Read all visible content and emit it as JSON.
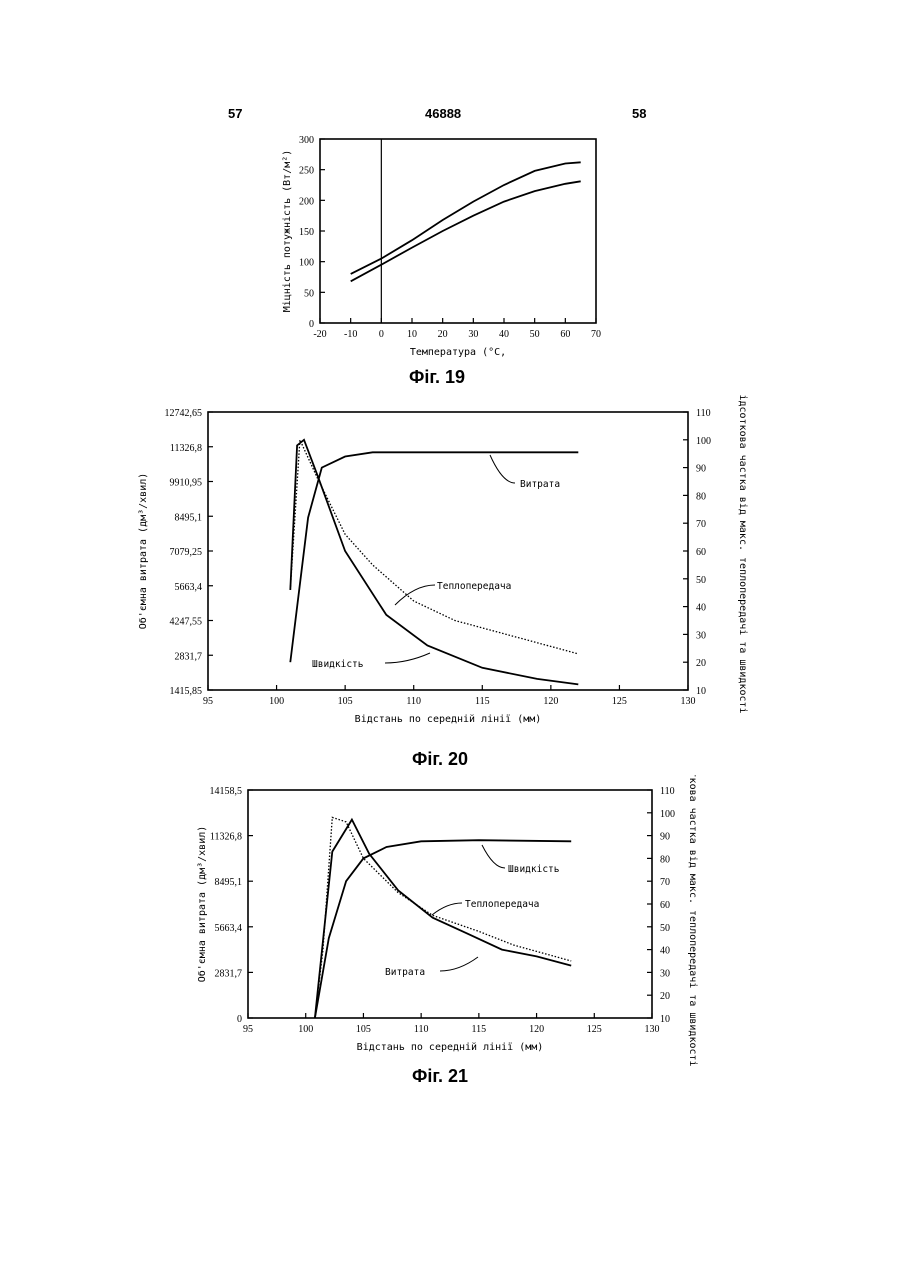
{
  "page": {
    "left_number": "57",
    "doc_number": "46888",
    "right_number": "58"
  },
  "chart_data": [
    {
      "type": "line",
      "caption": "Фіг. 19",
      "xlabel": "Температура (°C,",
      "ylabel": "Міцність потужність (Вт/м²)",
      "xlim": [
        -20,
        70
      ],
      "ylim": [
        0,
        300
      ],
      "xticks": [
        "-20",
        "-10",
        "0",
        "10",
        "20",
        "30",
        "40",
        "50",
        "60",
        "70"
      ],
      "yticks": [
        "0",
        "50",
        "100",
        "150",
        "200",
        "250",
        "300"
      ],
      "vline_x": 0,
      "series": [
        {
          "values": [
            [
              -10,
              80
            ],
            [
              0,
              105
            ],
            [
              10,
              135
            ],
            [
              20,
              168
            ],
            [
              30,
              198
            ],
            [
              40,
              225
            ],
            [
              50,
              248
            ],
            [
              60,
              260
            ],
            [
              65,
              262
            ]
          ]
        },
        {
          "values": [
            [
              -10,
              68
            ],
            [
              0,
              95
            ],
            [
              10,
              123
            ],
            [
              20,
              150
            ],
            [
              30,
              175
            ],
            [
              40,
              198
            ],
            [
              50,
              215
            ],
            [
              60,
              227
            ],
            [
              65,
              231
            ]
          ]
        }
      ]
    },
    {
      "type": "line",
      "caption": "Фіг. 20",
      "xlabel": "Відстань по середній лінії (мм)",
      "ylabel": "Об'ємна витрата (дм³/хвил)",
      "y2label": "Відсоткова частка від макс. теплопередачі та швидкості",
      "xlim": [
        95,
        130
      ],
      "xticks": [
        "95",
        "100",
        "105",
        "110",
        "115",
        "120",
        "125",
        "130"
      ],
      "yticks": [
        "1415,85",
        "2831,7",
        "4247,55",
        "5663,4",
        "7079,25",
        "8495,1",
        "9910,95",
        "11326,8",
        "12742,65"
      ],
      "y2lim": [
        10,
        110
      ],
      "y2ticks": [
        "10",
        "20",
        "30",
        "40",
        "50",
        "60",
        "70",
        "80",
        "90",
        "100",
        "110"
      ],
      "annotations": {
        "a": "Витрата",
        "b": "Теплопередача",
        "c": "Швидкість"
      },
      "series": [
        {
          "name": "Витрата",
          "style": "solid",
          "values": [
            [
              101,
              20
            ],
            [
              102.3,
              72
            ],
            [
              103.3,
              90
            ],
            [
              105,
              94
            ],
            [
              107,
              95.5
            ],
            [
              110,
              95.5
            ],
            [
              115,
              95.5
            ],
            [
              122,
              95.5
            ]
          ]
        },
        {
          "name": "Теплопередача",
          "style": "dotted",
          "values": [
            [
              101,
              46
            ],
            [
              101.7,
              100
            ],
            [
              103,
              86
            ],
            [
              105,
              66
            ],
            [
              107,
              55
            ],
            [
              110,
              42
            ],
            [
              113,
              35
            ],
            [
              116,
              31
            ],
            [
              119,
              27
            ],
            [
              122,
              23
            ]
          ]
        },
        {
          "name": "Швидкість",
          "style": "solid",
          "values": [
            [
              101,
              46
            ],
            [
              101.5,
              98
            ],
            [
              102,
              100
            ],
            [
              103,
              87
            ],
            [
              105,
              60
            ],
            [
              108,
              37
            ],
            [
              111,
              26
            ],
            [
              115,
              18
            ],
            [
              119,
              14
            ],
            [
              122,
              12
            ]
          ]
        }
      ]
    },
    {
      "type": "line",
      "caption": "Фіг. 21",
      "xlabel": "Відстань по середній лінії (мм)",
      "ylabel": "Об'ємна витрата (дм³/хвил)",
      "y2label": "Відсоткова частка від макс. теплопередачі та швидкості",
      "xlim": [
        95,
        130
      ],
      "xticks": [
        "95",
        "100",
        "105",
        "110",
        "115",
        "120",
        "125",
        "130"
      ],
      "yticks": [
        "0",
        "2831,7",
        "5663,4",
        "8495,1",
        "11326,8",
        "14158,5"
      ],
      "y2lim": [
        10,
        110
      ],
      "y2ticks": [
        "10",
        "20",
        "30",
        "40",
        "50",
        "60",
        "70",
        "80",
        "90",
        "100",
        "110"
      ],
      "annotations": {
        "a": "Швидкість",
        "b": "Теплопередача",
        "c": "Витрата"
      },
      "series": [
        {
          "name": "Швидкість",
          "style": "solid",
          "values": [
            [
              100.8,
              10
            ],
            [
              102,
              45
            ],
            [
              103.5,
              70
            ],
            [
              105,
              80
            ],
            [
              107,
              85
            ],
            [
              110,
              87.5
            ],
            [
              115,
              88
            ],
            [
              123,
              87.5
            ]
          ]
        },
        {
          "name": "Теплопередача",
          "style": "dotted",
          "values": [
            [
              100.8,
              10
            ],
            [
              101.5,
              40
            ],
            [
              102.3,
              98
            ],
            [
              103.5,
              96
            ],
            [
              105,
              80
            ],
            [
              108,
              65
            ],
            [
              111,
              55
            ],
            [
              115,
              48
            ],
            [
              118,
              42
            ],
            [
              123,
              35
            ]
          ]
        },
        {
          "name": "Витрата",
          "style": "solid",
          "values": [
            [
              100.8,
              10
            ],
            [
              102.3,
              83
            ],
            [
              104,
              97
            ],
            [
              105.5,
              82
            ],
            [
              108,
              66
            ],
            [
              111,
              54
            ],
            [
              114,
              47
            ],
            [
              117,
              40
            ],
            [
              120,
              37
            ],
            [
              123,
              33
            ]
          ]
        }
      ]
    }
  ]
}
